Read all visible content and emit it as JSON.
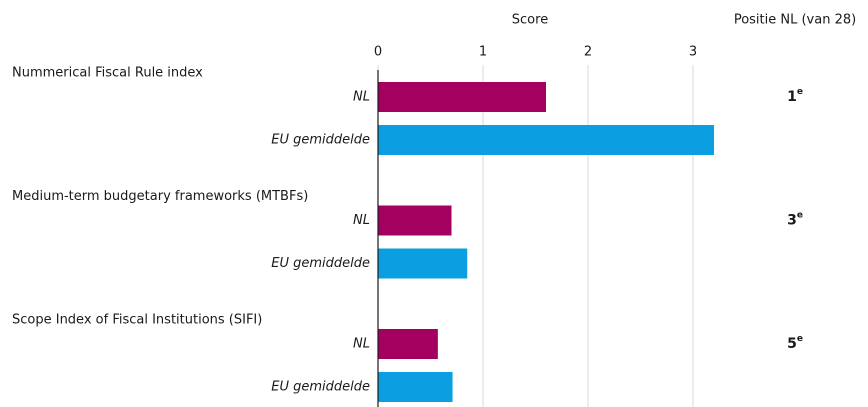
{
  "chart_data": {
    "type": "bar",
    "orientation": "horizontal",
    "xlabel": "Score",
    "rank_title": "Positie NL (van 28)",
    "categories": [
      "Nummerical Fiscal Rule index",
      "Medium-term budgetary frameworks (MTBFs)",
      "Scope Index of Fiscal Institutions (SIFI)"
    ],
    "series": [
      {
        "name": "NL",
        "color": "#a3005f",
        "values": [
          1.6,
          0.7,
          0.57
        ]
      },
      {
        "name": "EU gemiddelde",
        "color": "#0b9fe1",
        "values": [
          3.2,
          0.85,
          0.71
        ]
      }
    ],
    "ranks": [
      {
        "value": "1",
        "sup": "e"
      },
      {
        "value": "3",
        "sup": "e"
      },
      {
        "value": "5",
        "sup": "e"
      }
    ],
    "xlim": [
      0,
      3.3
    ],
    "xticks": [
      0,
      1,
      2,
      3
    ],
    "grid": true
  }
}
